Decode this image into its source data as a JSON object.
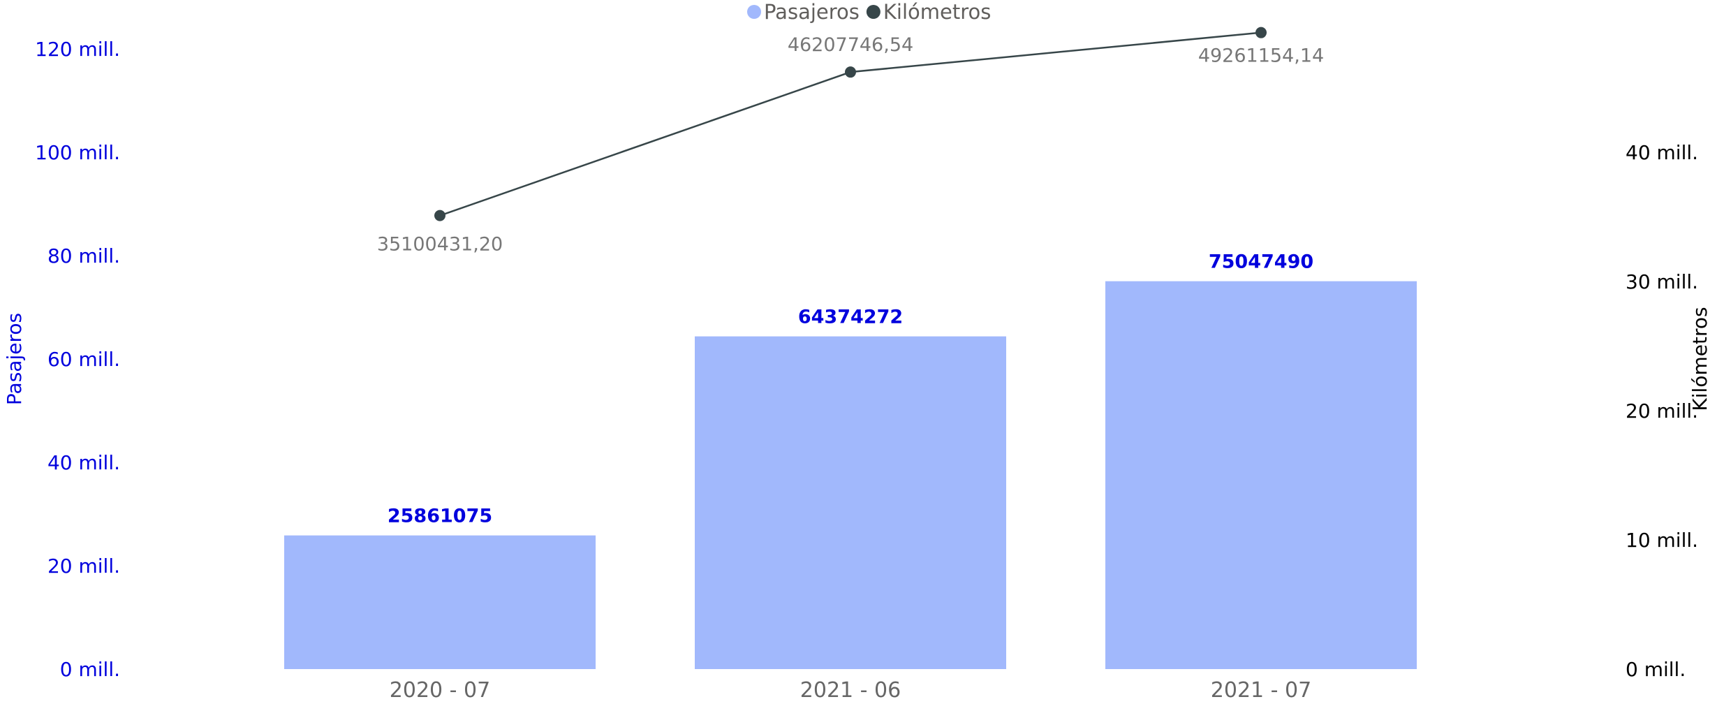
{
  "chart_data": {
    "type": "bar",
    "categories": [
      "2020 - 07",
      "2021 - 06",
      "2021 - 07"
    ],
    "series": [
      {
        "name": "Pasajeros",
        "type": "bar",
        "axis": "left",
        "values": [
          25861075,
          64374272,
          75047490
        ],
        "labels": [
          "25861075",
          "64374272",
          "75047490"
        ],
        "color": "#a1b8fc"
      },
      {
        "name": "Kilómetros",
        "type": "line",
        "axis": "right",
        "values": [
          35100431.2,
          46207746.54,
          49261154.14
        ],
        "labels": [
          "35100431,20",
          "46207746,54",
          "49261154,14"
        ],
        "color": "#374649"
      }
    ],
    "y_left": {
      "label": "Pasajeros",
      "ylim": [
        0,
        120000000
      ],
      "ticks": [
        "0 mill.",
        "20 mill.",
        "40 mill.",
        "60 mill.",
        "80 mill.",
        "100 mill.",
        "120 mill."
      ],
      "color": "#0000dd"
    },
    "y_right": {
      "label": "Kilómetros",
      "ylim": [
        0,
        48000000
      ],
      "ticks": [
        "0 mill.",
        "10 mill.",
        "20 mill.",
        "30 mill.",
        "40 mill."
      ],
      "color": "#000000"
    },
    "grid": false,
    "legend_position": "top-center"
  }
}
